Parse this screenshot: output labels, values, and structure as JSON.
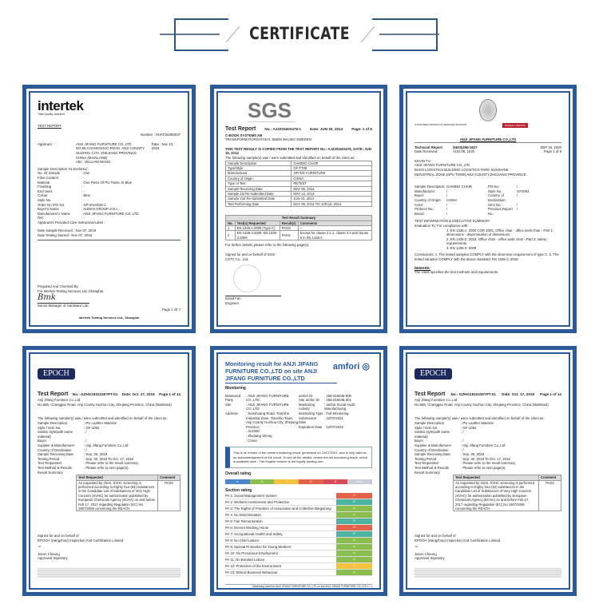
{
  "heading": "CERTIFICATE",
  "colors": {
    "frame": "#2a5a9a",
    "rating_a": "#8bbd4f",
    "rating_b": "#4bb3a0",
    "rating_c": "#f5c242",
    "rating_d": "#e5624a"
  },
  "intertek": {
    "logo": "intertek",
    "tagline": "Total Quality. Assured.",
    "doc_title": "TEST REPORT",
    "number_label": "Number :",
    "number": "SHATO6393037",
    "date_label": "Date :",
    "date": "Nov 13, 2019",
    "applicant_label": "Applicant :",
    "applicant": [
      "ANJI JIFANG FURNITURE CO.,LTD",
      "NO.55,CHANGSHUO ROAD, ANJI COUNTY",
      "HUZHOU CITY, ZHEJIANG PROVINCE",
      "CHINA (MAINLAND)",
      "Attn : WILLIAM WANG"
    ],
    "sample_heading": "Sample Description As Declared :",
    "fields": [
      [
        "No. Of Sample",
        ": One"
      ],
      [
        "Fibre Content",
        ": -"
      ],
      [
        "Material",
        ": One Piece Of PU Fabric In Blue"
      ],
      [
        "Finishing",
        ": -"
      ],
      [
        "End Uses",
        ": -"
      ],
      [
        "Colour",
        ": Blue"
      ],
      [
        "Style No.",
        ": -"
      ],
      [
        "Order No./PO No.",
        ": GP-2019106-1"
      ],
      [
        "Buyer's Name",
        ": AUDES GROUP S.R.L."
      ],
      [
        "Manufacturer's Name",
        ": ANJI JIFANG FURNITURE CO.,LTD"
      ],
      [
        "Ref.",
        ": -"
      ]
    ],
    "care_label": "Applicant's Provided Care Instruction/Label :",
    "received": "Date Sample Received : Nov 07, 2019",
    "started": "Date Testing Started : Nov 07, 2019",
    "prepared": "Prepared And Checked By:",
    "for": "For Intertek Testing Services Ltd.,Shanghai",
    "signer": "Senior Manager of Hardware Lab",
    "page": "Page 1 Of 7",
    "footer": "Intertek Testing Services Ltd., Shanghai"
  },
  "sgs": {
    "logo": "SGS",
    "title": "Test Report",
    "no": "No.: AJ2201603476-1",
    "date": "Date: JUN 30, 2014",
    "page": "Page: 1 of 6",
    "company": "C-BOOK SYSTEMS AB",
    "address": "TRANSFORMATORGATAN 6, 58835 MALMO SWEDEN",
    "copied": "THIS TEST RESULT IS COPIED FROM THE TEST REPORT No.: AJ2201603476, DATE: JUN 16, 2014",
    "intro": "The following sample(s) was / were submitted and identified on behalf of the client as:",
    "rows": [
      [
        "Sample Description",
        "GAMING CHAIR"
      ],
      [
        "Type/Style",
        "GF-T708"
      ],
      [
        "Manufacturer",
        "JIFANG FURNITURE"
      ],
      [
        "Country of Origin",
        "CHINA"
      ],
      [
        "Type of Test",
        "RETEST"
      ],
      [
        "Sample Receiving Date",
        "MAY 06, 2014"
      ],
      [
        "Sample 1st Re-Submitted Date",
        "MAY 14, 2014"
      ],
      [
        "Sample 2nd Re-Submitted Date",
        "JUN 03, 2014"
      ],
      [
        "Test Performing Date",
        "MAY 06, 2014 TO JUN 16, 2014"
      ]
    ],
    "summary_title": "Test Result Summary",
    "summary_headers": [
      "No.",
      "Test(s) Requested",
      "Result(s)",
      "Comments"
    ],
    "summary": [
      [
        "1",
        "EN 1335-1:2000 (Type C)",
        "PASS",
        "--"
      ],
      [
        "2",
        "EN 1335-2:2009; EN 1335-3:2009",
        "PASS",
        "Except for clause 4.1.1, clause 4.4 and clause 5 in EN 1335-2"
      ]
    ],
    "further": "For further details, please refer to the following page(s).",
    "signed": "Signed for and on behalf of SGS-CSTC Co., Ltd.",
    "signer": "David Fan",
    "role": "Engineer"
  },
  "bv": {
    "division": "CONSUMER PRODUCTS SERVICES DIVISION",
    "brand": "BUREAU VERITAS",
    "company": "ANJI JIFANG FURNITURE CO.,LTD",
    "report_label": "Technical Report:",
    "report_no": "(6620)266-1627",
    "date": "SEP 16, 2020",
    "page": "Page 1 of 8",
    "received": "AUG 06, 2020",
    "address": [
      "KEVIN TU",
      "ANJI JIFANG FURNITURE CO.,LTD",
      "BAOX LOGISTICS BUILDING LOGISTICS PARK SUNSHINE",
      "INDUSTRIAL ZONE,DIPU TOWN,ANJI COUNTY,ZHEJIANG PROVINCE"
    ],
    "fields": [
      [
        "Sample Description:",
        "GAMING CHAIR"
      ],
      [
        "Manufacturer:",
        "/"
      ],
      [
        "Buyer:",
        "/"
      ],
      [
        "Country of Origin:",
        "CHINA"
      ],
      [
        "Color:",
        "/"
      ],
      [
        "Protocol No.:",
        "/"
      ],
      [
        "Brand:",
        "/"
      ]
    ],
    "fields2": [
      [
        "PO No.:",
        "/"
      ],
      [
        "Style No.:",
        "GF2004"
      ],
      [
        "Country of Destination:",
        "/"
      ],
      [
        "SKU No.:",
        "/"
      ],
      [
        "Previous Report No.:",
        "/"
      ]
    ],
    "exec": "TEST INFORMATION & EXECUTIVE SUMMARY",
    "eval": "Evaluation To: For compliance with:",
    "compliance": [
      "1. EN 1335-1: 2000 COR 2002, Office chair - office work chair - Part 1: dimensions - determination of dimensions",
      "2. EN 1335-2: 2018, Office chair - office work chair - Part 2: safety requirements",
      "3. EN 1335-3: 2009"
    ],
    "conclusions": "Conclusions: 1. The tested samples COMPLY with the dimension requirement of type C. 2. The tested samples COMPLY with the above standard: EN 1335-2: 2018.",
    "remark_label": "REMARK:",
    "remark": "The client specifies the test methods and requirements."
  },
  "epoch": {
    "logo": "EPOCH",
    "title": "Test Report",
    "no": "No.: GZHG1910235?PT-01",
    "date": "Date: Oct. 17, 2019",
    "page": "Page 1 of 14",
    "client": "Anji Jifang Furniture Co.,Ltd",
    "address": "No.555, Changgao Road, Anji County Huzhou City, Zhejiang Province, China (Mainland)",
    "intro": "The following sample(s) was / were submitted and identified on behalf of the client as:",
    "fields": [
      [
        "Sample Description",
        ": PU Leather Material"
      ],
      [
        "Style / Item No.",
        ": GF-1062"
      ],
      [
        "Similar style(with same material)",
        ": /"
      ],
      [
        "Buyer",
        ": /"
      ],
      [
        "Supplier & Manufacturer",
        ": Anji Jifang Furniture Co.,Ltd"
      ],
      [
        "Country of Destination",
        ": /"
      ],
      [
        "Sample Receiving Date",
        ": Sep. 30, 2019"
      ],
      [
        "Testing Period",
        ": Sep. 30, 2019 To Oct. 17, 2019"
      ],
      [
        "Test Requested",
        ": Please refer to the result summary."
      ],
      [
        "Test Method & Results",
        ": Please refer to next page(s)."
      ],
      [
        "Result Summary",
        ":"
      ]
    ],
    "table_headers": [
      "Test Requested",
      "Comment"
    ],
    "request": "As requested by client, SVHC screening is performed according to Eighty four (84) substances in the Candidate List of Substances of Very High Concern (SVHC) for authorization published by European Chemicals Agency (ECHA) on and before Feb 17, 2017 regarding Regulation (EC) No 1907/2006 concerning the REACH.",
    "comment": "PASS",
    "signed": "Signed for and on behalf of",
    "org": "EPOCH (Hangzhou) Inspection And Certification Limited",
    "signer": "Jason Cheung",
    "role": "Approved Signatory"
  },
  "amfori": {
    "title": "Monitoring result for ANJI JIFANG FURNITURE CO.,LTD on site ANJI JIFANG FURNITURE CO.,LTD",
    "logo": "amfori",
    "tagline": "Trade with purpose",
    "monitoring": "Monitoring",
    "left": [
      [
        "Monitored Party",
        ": ANJI JIFANG FURNITURE CO.,LTD"
      ],
      [
        "Site",
        ": ANJI JIFANG FURNITURE CO.,LTD"
      ],
      [
        "Address",
        ": Sunshuang Road, Tianzihu Industrial Zone, Tianzihu Town, Anji County Huzhou City, Zhejiang Province"
      ],
      [
        "",
        ": 313300"
      ],
      [
        "",
        ": Zhejiang Sheng"
      ],
      [
        "",
        ": China"
      ]
    ],
    "right": [
      [
        "amfori ID",
        ": 156-016045-000"
      ],
      [
        "Site amfori ID",
        ": 156-016045-001"
      ],
      [
        "Monitoring Activity",
        ": amfori Social Audit - Manufacturing"
      ],
      [
        "Monitoring Type",
        ": Full Monitoring"
      ],
      [
        "Submission Date",
        ": 12/07/2021"
      ],
      [
        "Expiration Date",
        ": 12/07/2022"
      ]
    ],
    "notice": "This is an extract of the online monitoring result, generated on 12/07/2021, and is only valid as an acknowledgement of the result. To see all the details, review the full monitoring result, which is available here - The English version is the legally binding one.",
    "overall_label": "Overall rating",
    "scale": [
      "A",
      "B",
      "C",
      "D",
      "E",
      "None"
    ],
    "overall_value": "C",
    "section_label": "Section rating",
    "sections": [
      [
        "PA 1: Social Management System",
        "D"
      ],
      [
        "PA 2: Workers Involvement and Protection",
        "B"
      ],
      [
        "PA 3: The Rights of Freedom of Association and Collective Bargaining",
        "A"
      ],
      [
        "PA 4: No Discrimination",
        "A"
      ],
      [
        "PA 5: Fair Remuneration",
        "B"
      ],
      [
        "PA 6: Decent Working Hours",
        "D"
      ],
      [
        "PA 7: Occupational Health and Safety",
        "B"
      ],
      [
        "PA 8: No Child Labour",
        "A"
      ],
      [
        "PA 9: Special Protection for Young Workers",
        "A"
      ],
      [
        "PA 10: No Precarious Employment",
        "A"
      ],
      [
        "PA 11: No Bonded Labour",
        "A"
      ],
      [
        "PA 12: Protection of the Environment",
        "C"
      ],
      [
        "PA 13: Ethical Business Behaviour",
        "A"
      ]
    ],
    "footer": "Monitoring result for ANJI JIFANG FURNITURE CO.,LTD on site ANJI JIFANG FURNITURE CO.,LTD  1 / 1"
  }
}
